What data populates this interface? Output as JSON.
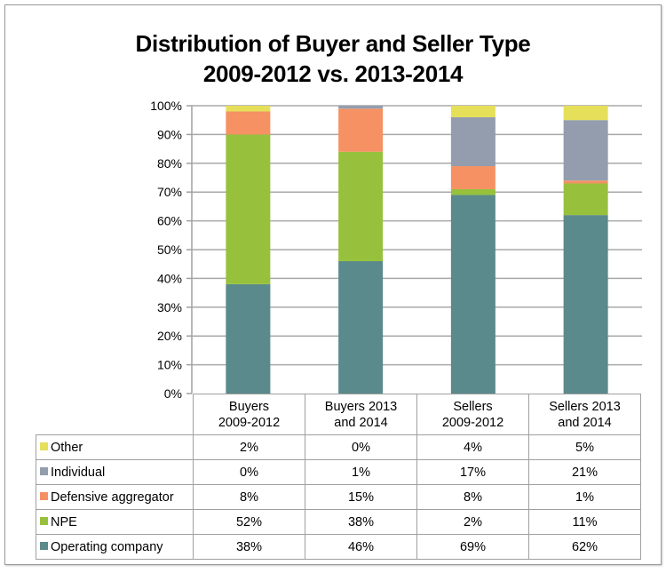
{
  "chart_data": {
    "type": "bar",
    "stacked": true,
    "percent": true,
    "title": "Distribution of Buyer and Seller Type",
    "subtitle": "2009-2012 vs. 2013-2014",
    "title_lines": [
      "Distribution of Buyer and Seller Type",
      "2009-2012 vs. 2013-2014"
    ],
    "xlabel": "",
    "ylabel": "",
    "ylim": [
      0,
      100
    ],
    "yticks": [
      "0%",
      "10%",
      "20%",
      "30%",
      "40%",
      "50%",
      "60%",
      "70%",
      "80%",
      "90%",
      "100%"
    ],
    "grid": true,
    "legend": "data-table-left",
    "categories": [
      [
        "Buyers",
        "2009-2012"
      ],
      [
        "Buyers 2013",
        "and 2014"
      ],
      [
        "Sellers",
        "2009-2012"
      ],
      [
        "Sellers 2013",
        "and 2014"
      ]
    ],
    "category_names": [
      "Buyers 2009-2012",
      "Buyers 2013 and 2014",
      "Sellers 2009-2012",
      "Sellers 2013 and 2014"
    ],
    "series": [
      {
        "name": "Operating company",
        "color": "#5a8a8b",
        "values": [
          38,
          46,
          69,
          62
        ]
      },
      {
        "name": "NPE",
        "color": "#97c13c",
        "values": [
          52,
          38,
          2,
          11
        ]
      },
      {
        "name": "Defensive aggregator",
        "color": "#f59163",
        "values": [
          8,
          15,
          8,
          1
        ]
      },
      {
        "name": "Individual",
        "color": "#939dad",
        "values": [
          0,
          1,
          17,
          21
        ]
      },
      {
        "name": "Other",
        "color": "#e6df5a",
        "values": [
          2,
          0,
          4,
          5
        ]
      }
    ],
    "table_rows": [
      {
        "name": "Other",
        "color": "#e6df5a",
        "labels": [
          "2%",
          "0%",
          "4%",
          "5%"
        ]
      },
      {
        "name": "Individual",
        "color": "#939dad",
        "labels": [
          "0%",
          "1%",
          "17%",
          "21%"
        ]
      },
      {
        "name": "Defensive aggregator",
        "color": "#f59163",
        "labels": [
          "8%",
          "15%",
          "8%",
          "1%"
        ]
      },
      {
        "name": "NPE",
        "color": "#97c13c",
        "labels": [
          "52%",
          "38%",
          "2%",
          "11%"
        ]
      },
      {
        "name": "Operating company",
        "color": "#5a8a8b",
        "labels": [
          "38%",
          "46%",
          "69%",
          "62%"
        ]
      }
    ]
  }
}
